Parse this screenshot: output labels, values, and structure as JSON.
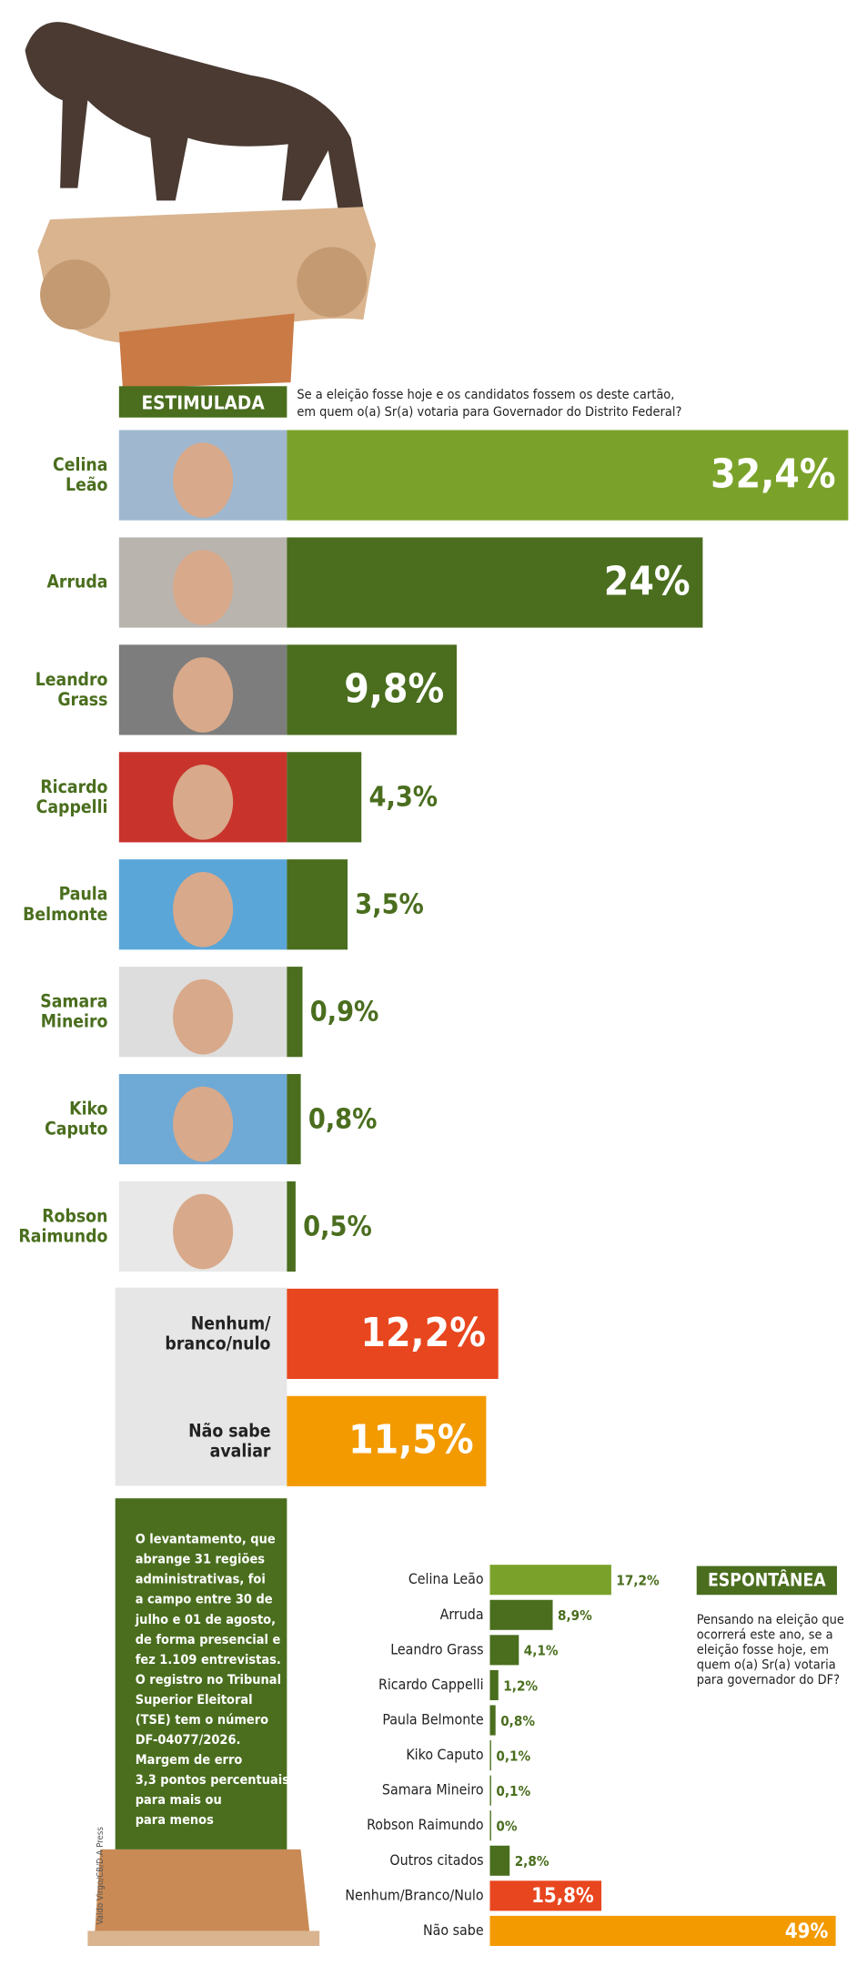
{
  "chart_data": [
    {
      "type": "hbar",
      "title": "ESTIMULADA",
      "subtitle": "Se a eleição fosse hoje e os candidatos fossem os deste cartão,\nem quem o(a) Sr(a) votaria para Governador do Distrito Federal?",
      "categories": [
        "Celina\nLeão",
        "Arruda",
        "Leandro\nGrass",
        "Ricardo\nCappelli",
        "Paula\nBelmonte",
        "Samara\nMineiro",
        "Kiko\nCaputo",
        "Robson\nRaimundo",
        "Nenhum/\nbranco/nulo",
        "Não sabe\navaliar"
      ],
      "values": [
        32.4,
        24,
        9.8,
        4.3,
        3.5,
        0.9,
        0.8,
        0.5,
        12.2,
        11.5
      ],
      "value_labels": [
        "32,4%",
        "24%",
        "9,8%",
        "4,3%",
        "3,5%",
        "0,9%",
        "0,8%",
        "0,5%",
        "12,2%",
        "11,5%"
      ],
      "colors": [
        "#7aa22a",
        "#4a6e1e",
        "#4a6e1e",
        "#4a6e1e",
        "#4a6e1e",
        "#4a6e1e",
        "#4a6e1e",
        "#4a6e1e",
        "#e8461e",
        "#f39a00"
      ],
      "annotations": [
        "O levantamento, que\nabrange 31 regiões\nadministrativas, foi\na campo entre 30 de\njulho e 01 de agosto,\nde forma presencial e\nfez 1.109 entrevistas.\nO registro no Tribunal\nSuperior Eleitoral\n(TSE) tem o número\nDF-04077/2026.\nMargem de erro\n3,3 pontos percentuais\npara mais ou\npara menos",
        "Valdo Virgo/CB/D.A Press"
      ]
    },
    {
      "type": "hbar",
      "title": "ESPONTÂNEA",
      "subtitle": "Pensando na eleição que\nocorrerá este ano, se a\neleição fosse hoje, em\nquem o(a) Sr(a) votaria\npara governador do DF?",
      "categories": [
        "Celina Leão",
        "Arruda",
        "Leandro Grass",
        "Ricardo Cappelli",
        "Paula Belmonte",
        "Kiko Caputo",
        "Samara Mineiro",
        "Robson Raimundo",
        "Outros citados",
        "Nenhum/Branco/Nulo",
        "Não sabe"
      ],
      "values": [
        17.2,
        8.9,
        4.1,
        1.2,
        0.8,
        0.1,
        0.1,
        0,
        2.8,
        15.8,
        49
      ],
      "value_labels": [
        "17,2%",
        "8,9%",
        "4,1%",
        "1,2%",
        "0,8%",
        "0,1%",
        "0,1%",
        "0%",
        "2,8%",
        "15,8%",
        "49%"
      ],
      "colors": [
        "#7aa22a",
        "#4a6e1e",
        "#4a6e1e",
        "#4a6e1e",
        "#4a6e1e",
        "#4a6e1e",
        "#4a6e1e",
        "#4a6e1e",
        "#4a6e1e",
        "#e8461e",
        "#f39a00"
      ]
    }
  ]
}
